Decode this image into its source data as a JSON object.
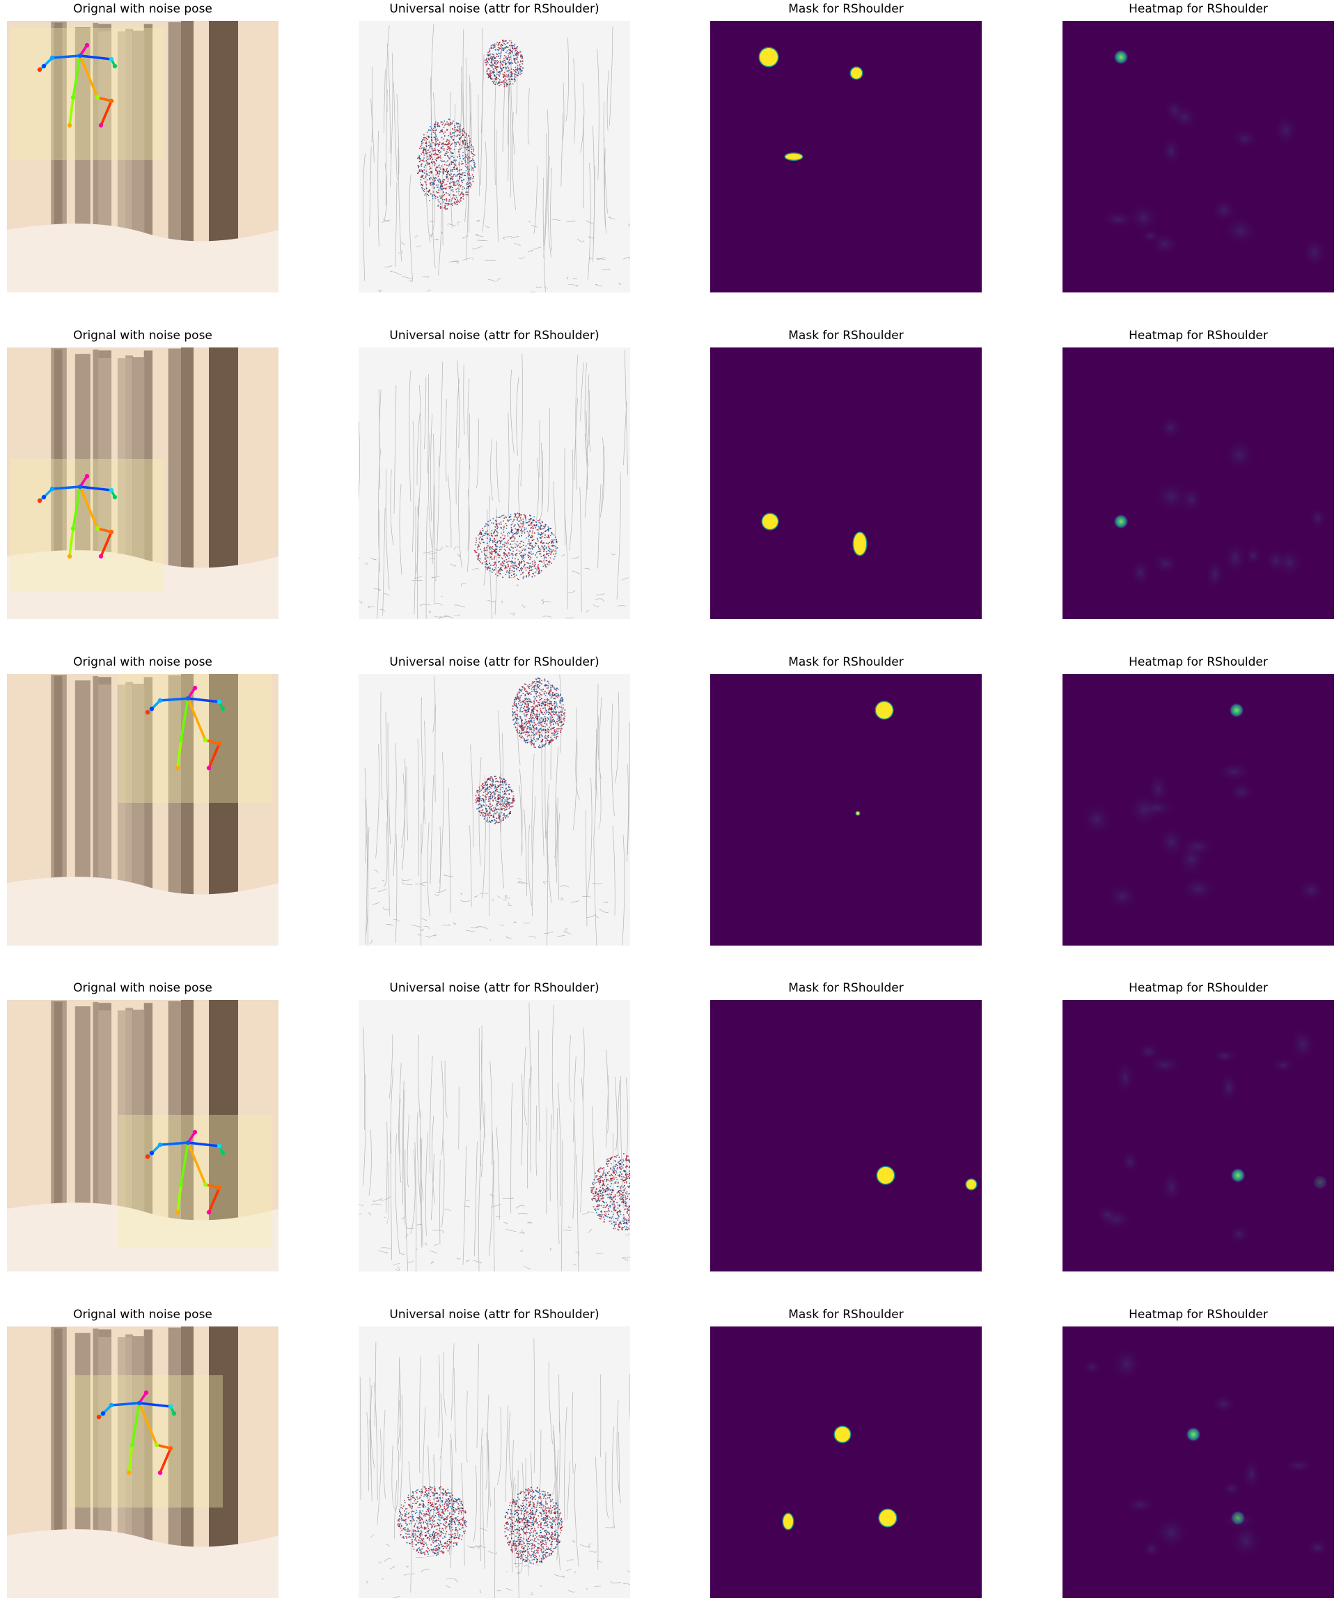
{
  "figure": {
    "columns": [
      {
        "key": "original",
        "title": "Orignal with noise pose"
      },
      {
        "key": "noise",
        "title": "Universal noise (attr for RShoulder)"
      },
      {
        "key": "mask",
        "title": "Mask for RShoulder"
      },
      {
        "key": "heatmap",
        "title": "Heatmap for RShoulder"
      }
    ],
    "rows": [
      {
        "index": 1
      },
      {
        "index": 2
      },
      {
        "index": 3
      },
      {
        "index": 4
      },
      {
        "index": 5
      }
    ]
  },
  "colors": {
    "mask_background": "#440154",
    "mask_blob": "#fde725",
    "mask_edge": "#21918c",
    "heatmap_background": "#440154",
    "heatmap_peak": "#35b779",
    "noise_red": "#b2182b",
    "noise_blue": "#2166ac",
    "forest_bg": "#f1dcc6",
    "tree_dark": "#6f5a4a"
  }
}
